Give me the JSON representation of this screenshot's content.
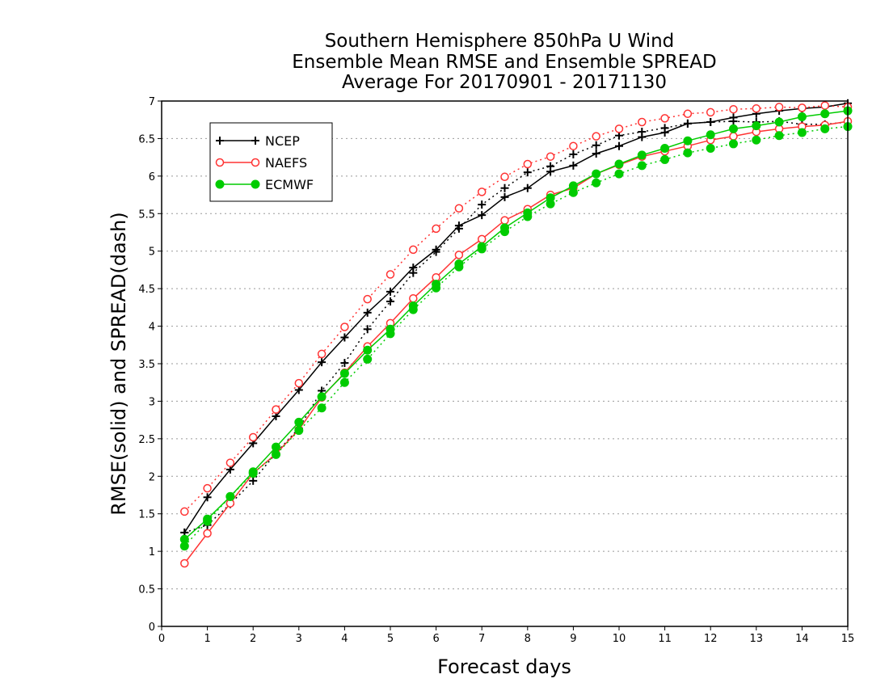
{
  "chart_data": {
    "type": "line",
    "title": [
      "Southern Hemisphere 850hPa U Wind",
      "Ensemble Mean RMSE and Ensemble SPREAD",
      "Average For 20170901 - 20171130"
    ],
    "xlabel": "Forecast days",
    "ylabel": "RMSE(solid) and SPREAD(dash)",
    "xlim": [
      0,
      15
    ],
    "ylim": [
      0,
      7
    ],
    "xticks": [
      "0",
      "1",
      "2",
      "3",
      "4",
      "5",
      "6",
      "7",
      "8",
      "9",
      "10",
      "11",
      "12",
      "13",
      "14",
      "15"
    ],
    "yticks": [
      "0",
      "0.5",
      "1",
      "1.5",
      "2",
      "2.5",
      "3",
      "3.5",
      "4",
      "4.5",
      "5",
      "5.5",
      "6",
      "6.5",
      "7"
    ],
    "grid": "horizontal dotted",
    "legend_position": "top-left",
    "x": [
      0.5,
      1,
      1.5,
      2,
      2.5,
      3,
      3.5,
      4,
      4.5,
      5,
      5.5,
      6,
      6.5,
      7,
      7.5,
      8,
      8.5,
      9,
      9.5,
      10,
      10.5,
      11,
      11.5,
      12,
      12.5,
      13,
      13.5,
      14,
      14.5,
      15
    ],
    "series": [
      {
        "name": "NCEP",
        "color": "#000000",
        "marker": "plus",
        "rmse": [
          1.25,
          1.72,
          2.09,
          2.44,
          2.8,
          3.15,
          3.52,
          3.85,
          4.18,
          4.46,
          4.78,
          5.02,
          5.34,
          5.48,
          5.72,
          5.84,
          6.06,
          6.14,
          6.3,
          6.4,
          6.52,
          6.58,
          6.7,
          6.72,
          6.78,
          6.83,
          6.87,
          6.9,
          6.92,
          6.97
        ],
        "spread": [
          1.25,
          1.35,
          1.63,
          1.94,
          2.31,
          2.64,
          3.14,
          3.51,
          3.96,
          4.33,
          4.71,
          4.99,
          5.3,
          5.62,
          5.84,
          6.05,
          6.13,
          6.29,
          6.41,
          6.54,
          6.59,
          6.64,
          6.7,
          6.72,
          6.73,
          6.72,
          6.73,
          6.69,
          6.69,
          6.72
        ]
      },
      {
        "name": "NAEFS",
        "color": "#ff3333",
        "marker": "circle",
        "rmse": [
          0.84,
          1.24,
          1.64,
          2.04,
          2.3,
          2.62,
          3.05,
          3.38,
          3.73,
          4.04,
          4.37,
          4.65,
          4.95,
          5.16,
          5.41,
          5.56,
          5.75,
          5.84,
          6.03,
          6.15,
          6.26,
          6.33,
          6.4,
          6.48,
          6.53,
          6.59,
          6.63,
          6.66,
          6.68,
          6.73
        ],
        "spread": [
          1.53,
          1.84,
          2.18,
          2.52,
          2.89,
          3.24,
          3.63,
          3.99,
          4.36,
          4.69,
          5.02,
          5.3,
          5.57,
          5.79,
          5.99,
          6.16,
          6.26,
          6.4,
          6.53,
          6.63,
          6.72,
          6.77,
          6.83,
          6.85,
          6.89,
          6.9,
          6.92,
          6.91,
          6.94,
          6.92
        ]
      },
      {
        "name": "ECMWF",
        "color": "#00cc00",
        "marker": "filled-circle",
        "rmse": [
          1.16,
          1.43,
          1.73,
          2.06,
          2.39,
          2.72,
          3.06,
          3.37,
          3.68,
          3.96,
          4.27,
          4.56,
          4.83,
          5.06,
          5.31,
          5.51,
          5.71,
          5.87,
          6.03,
          6.16,
          6.28,
          6.37,
          6.47,
          6.55,
          6.63,
          6.67,
          6.72,
          6.79,
          6.83,
          6.87
        ],
        "spread": [
          1.07,
          1.4,
          1.73,
          2.04,
          2.29,
          2.61,
          2.91,
          3.25,
          3.56,
          3.9,
          4.22,
          4.51,
          4.79,
          5.03,
          5.26,
          5.46,
          5.63,
          5.78,
          5.91,
          6.03,
          6.14,
          6.22,
          6.31,
          6.37,
          6.43,
          6.48,
          6.54,
          6.58,
          6.63,
          6.66
        ]
      }
    ]
  }
}
